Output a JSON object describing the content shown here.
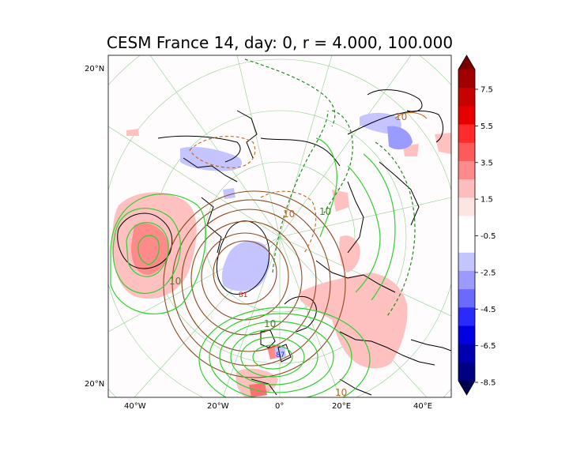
{
  "title": "CESM France 14, day: 0, r = 4.000, 100.000",
  "map": {
    "lon_tick_labels": [
      "40°W",
      "20°W",
      "0°",
      "20°E",
      "40°E"
    ],
    "lat_tick_labels": [
      "20°N",
      "20°N"
    ],
    "contour_labels": [
      {
        "text": "10",
        "color": "#c0661e"
      },
      {
        "text": "10",
        "color": "#c0661e"
      },
      {
        "text": "10",
        "color": "#3d8a1c"
      },
      {
        "text": "10",
        "color": "#3d8a1c"
      },
      {
        "text": "10",
        "color": "#3d8a1c"
      },
      {
        "text": "10",
        "color": "#c0661e"
      }
    ],
    "markers": [
      {
        "text": "81",
        "color": "#d62020"
      },
      {
        "text": "87",
        "color": "#2030d8"
      }
    ]
  },
  "colorbar": {
    "tick_labels": [
      "7.5",
      "5.5",
      "3.5",
      "1.5",
      "-0.5",
      "-2.5",
      "-4.5",
      "-6.5",
      "-8.5"
    ],
    "colors": [
      "#7a0000",
      "#a00000",
      "#c80000",
      "#e80000",
      "#ff2a2a",
      "#ff5a5a",
      "#ff8a8a",
      "#ffbcbc",
      "#ffe4e4",
      "#ffffff",
      "#ffffff",
      "#c4c4ff",
      "#9a9aff",
      "#6a6aff",
      "#2a2aff",
      "#0000e0",
      "#0000b0",
      "#000084",
      "#000050"
    ]
  }
}
